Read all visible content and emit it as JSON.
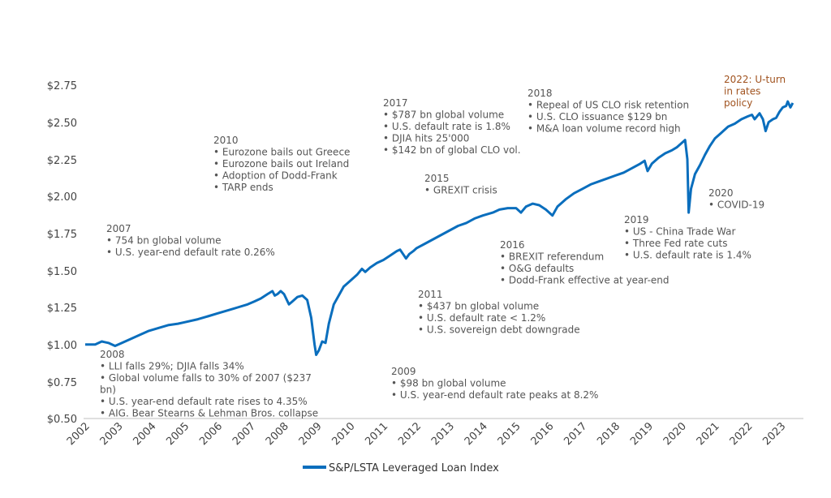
{
  "chart_data": {
    "type": "line",
    "title": "",
    "xlabel": "",
    "ylabel": "",
    "xlim": [
      2002.0,
      2023.5
    ],
    "ylim": [
      0.5,
      2.75
    ],
    "y_ticks": [
      {
        "value": 2.75,
        "label": "$2.75"
      },
      {
        "value": 2.5,
        "label": "$2.50"
      },
      {
        "value": 2.25,
        "label": "$2.25"
      },
      {
        "value": 2.0,
        "label": "$2.00"
      },
      {
        "value": 1.75,
        "label": "$1.75"
      },
      {
        "value": 1.5,
        "label": "$1.50"
      },
      {
        "value": 1.25,
        "label": "$1.25"
      },
      {
        "value": 1.0,
        "label": "$1.00"
      },
      {
        "value": 0.75,
        "label": "$0.75"
      },
      {
        "value": 0.5,
        "label": "$0.50"
      }
    ],
    "x_ticks": [
      "2002",
      "2003",
      "2004",
      "2005",
      "2006",
      "2007",
      "2008",
      "2009",
      "2010",
      "2011",
      "2012",
      "2013",
      "2014",
      "2015",
      "2016",
      "2017",
      "2018",
      "2019",
      "2020",
      "2021",
      "2022",
      "2023"
    ],
    "legend": "bottom-center",
    "grid": false,
    "series": [
      {
        "name": "S&P/LSTA Leveraged Loan Index",
        "color": "#0a6ebd",
        "points": [
          [
            2002.0,
            1.0
          ],
          [
            2002.3,
            1.0
          ],
          [
            2002.5,
            1.02
          ],
          [
            2002.7,
            1.01
          ],
          [
            2002.9,
            0.99
          ],
          [
            2003.0,
            1.0
          ],
          [
            2003.3,
            1.03
          ],
          [
            2003.6,
            1.06
          ],
          [
            2003.9,
            1.09
          ],
          [
            2004.2,
            1.11
          ],
          [
            2004.5,
            1.13
          ],
          [
            2004.8,
            1.14
          ],
          [
            2005.0,
            1.15
          ],
          [
            2005.4,
            1.17
          ],
          [
            2005.7,
            1.19
          ],
          [
            2006.0,
            1.21
          ],
          [
            2006.3,
            1.23
          ],
          [
            2006.6,
            1.25
          ],
          [
            2006.9,
            1.27
          ],
          [
            2007.1,
            1.29
          ],
          [
            2007.3,
            1.31
          ],
          [
            2007.5,
            1.34
          ],
          [
            2007.65,
            1.36
          ],
          [
            2007.72,
            1.33
          ],
          [
            2007.8,
            1.34
          ],
          [
            2007.9,
            1.36
          ],
          [
            2008.0,
            1.34
          ],
          [
            2008.15,
            1.27
          ],
          [
            2008.25,
            1.29
          ],
          [
            2008.4,
            1.32
          ],
          [
            2008.55,
            1.33
          ],
          [
            2008.7,
            1.3
          ],
          [
            2008.82,
            1.18
          ],
          [
            2008.92,
            1.0
          ],
          [
            2008.97,
            0.93
          ],
          [
            2009.05,
            0.96
          ],
          [
            2009.15,
            1.02
          ],
          [
            2009.25,
            1.01
          ],
          [
            2009.35,
            1.14
          ],
          [
            2009.5,
            1.27
          ],
          [
            2009.65,
            1.33
          ],
          [
            2009.8,
            1.39
          ],
          [
            2010.0,
            1.43
          ],
          [
            2010.2,
            1.47
          ],
          [
            2010.35,
            1.51
          ],
          [
            2010.45,
            1.49
          ],
          [
            2010.6,
            1.52
          ],
          [
            2010.8,
            1.55
          ],
          [
            2011.0,
            1.57
          ],
          [
            2011.2,
            1.6
          ],
          [
            2011.4,
            1.63
          ],
          [
            2011.5,
            1.64
          ],
          [
            2011.62,
            1.6
          ],
          [
            2011.68,
            1.58
          ],
          [
            2011.78,
            1.61
          ],
          [
            2011.9,
            1.63
          ],
          [
            2012.0,
            1.65
          ],
          [
            2012.25,
            1.68
          ],
          [
            2012.5,
            1.71
          ],
          [
            2012.75,
            1.74
          ],
          [
            2013.0,
            1.77
          ],
          [
            2013.25,
            1.8
          ],
          [
            2013.5,
            1.82
          ],
          [
            2013.75,
            1.85
          ],
          [
            2014.0,
            1.87
          ],
          [
            2014.3,
            1.89
          ],
          [
            2014.5,
            1.91
          ],
          [
            2014.75,
            1.92
          ],
          [
            2015.0,
            1.92
          ],
          [
            2015.15,
            1.89
          ],
          [
            2015.3,
            1.93
          ],
          [
            2015.5,
            1.95
          ],
          [
            2015.7,
            1.94
          ],
          [
            2015.9,
            1.91
          ],
          [
            2016.1,
            1.87
          ],
          [
            2016.25,
            1.93
          ],
          [
            2016.5,
            1.98
          ],
          [
            2016.75,
            2.02
          ],
          [
            2017.0,
            2.05
          ],
          [
            2017.25,
            2.08
          ],
          [
            2017.5,
            2.1
          ],
          [
            2017.75,
            2.12
          ],
          [
            2018.0,
            2.14
          ],
          [
            2018.25,
            2.16
          ],
          [
            2018.5,
            2.19
          ],
          [
            2018.75,
            2.22
          ],
          [
            2018.88,
            2.24
          ],
          [
            2018.97,
            2.17
          ],
          [
            2019.1,
            2.22
          ],
          [
            2019.3,
            2.26
          ],
          [
            2019.5,
            2.29
          ],
          [
            2019.7,
            2.31
          ],
          [
            2019.85,
            2.33
          ],
          [
            2020.0,
            2.36
          ],
          [
            2020.1,
            2.38
          ],
          [
            2020.17,
            2.25
          ],
          [
            2020.21,
            1.89
          ],
          [
            2020.28,
            2.05
          ],
          [
            2020.4,
            2.15
          ],
          [
            2020.55,
            2.21
          ],
          [
            2020.7,
            2.28
          ],
          [
            2020.85,
            2.34
          ],
          [
            2021.0,
            2.39
          ],
          [
            2021.2,
            2.43
          ],
          [
            2021.4,
            2.47
          ],
          [
            2021.6,
            2.49
          ],
          [
            2021.8,
            2.52
          ],
          [
            2022.0,
            2.54
          ],
          [
            2022.12,
            2.55
          ],
          [
            2022.2,
            2.52
          ],
          [
            2022.35,
            2.56
          ],
          [
            2022.45,
            2.52
          ],
          [
            2022.53,
            2.44
          ],
          [
            2022.62,
            2.5
          ],
          [
            2022.75,
            2.52
          ],
          [
            2022.85,
            2.53
          ],
          [
            2022.95,
            2.57
          ],
          [
            2023.05,
            2.6
          ],
          [
            2023.15,
            2.61
          ],
          [
            2023.2,
            2.64
          ],
          [
            2023.28,
            2.6
          ],
          [
            2023.35,
            2.63
          ]
        ]
      }
    ],
    "annotations": [
      {
        "year": "2007",
        "items": [
          "• 754 bn global volume",
          "• U.S. year-end default rate 0.26%"
        ]
      },
      {
        "year": "2008",
        "items": [
          "• LLI falls 29%; DJIA falls 34%",
          "• Global volume falls to 30% of 2007 ($237",
          "bn)",
          "• U.S. year-end default rate rises to 4.35%",
          "• AIG. Bear Stearns & Lehman Bros. collapse"
        ]
      },
      {
        "year": "2009",
        "items": [
          "• $98 bn global volume",
          "• U.S. year-end default rate peaks at 8.2%"
        ]
      },
      {
        "year": "2010",
        "items": [
          "• Eurozone bails out Greece",
          "• Eurozone bails out Ireland",
          "• Adoption of Dodd-Frank",
          "• TARP ends"
        ]
      },
      {
        "year": "2011",
        "items": [
          "• $437 bn global volume",
          "• U.S. default rate < 1.2%",
          "• U.S. sovereign debt downgrade"
        ]
      },
      {
        "year": "2015",
        "items": [
          "• GREXIT crisis"
        ]
      },
      {
        "year": "2016",
        "items": [
          "• BREXIT referendum",
          "• O&G defaults",
          "• Dodd-Frank effective at year-end"
        ]
      },
      {
        "year": "2017",
        "items": [
          "• $787 bn global volume",
          "• U.S. default rate is 1.8%",
          "• DJIA hits 25'000",
          "• $142 bn of global CLO vol."
        ]
      },
      {
        "year": "2018",
        "items": [
          "• Repeal of US CLO risk retention",
          "• U.S. CLO issuance $129 bn",
          "• M&A loan volume record high"
        ]
      },
      {
        "year": "2019",
        "items": [
          "• US - China Trade War",
          "• Three Fed rate cuts",
          "• U.S. default rate is 1.4%"
        ]
      },
      {
        "year": "2020",
        "items": [
          "• COVID-19"
        ]
      },
      {
        "year": "2022: U-turn",
        "items": [
          "in rates",
          "policy"
        ],
        "color": "#a0521e"
      }
    ]
  }
}
